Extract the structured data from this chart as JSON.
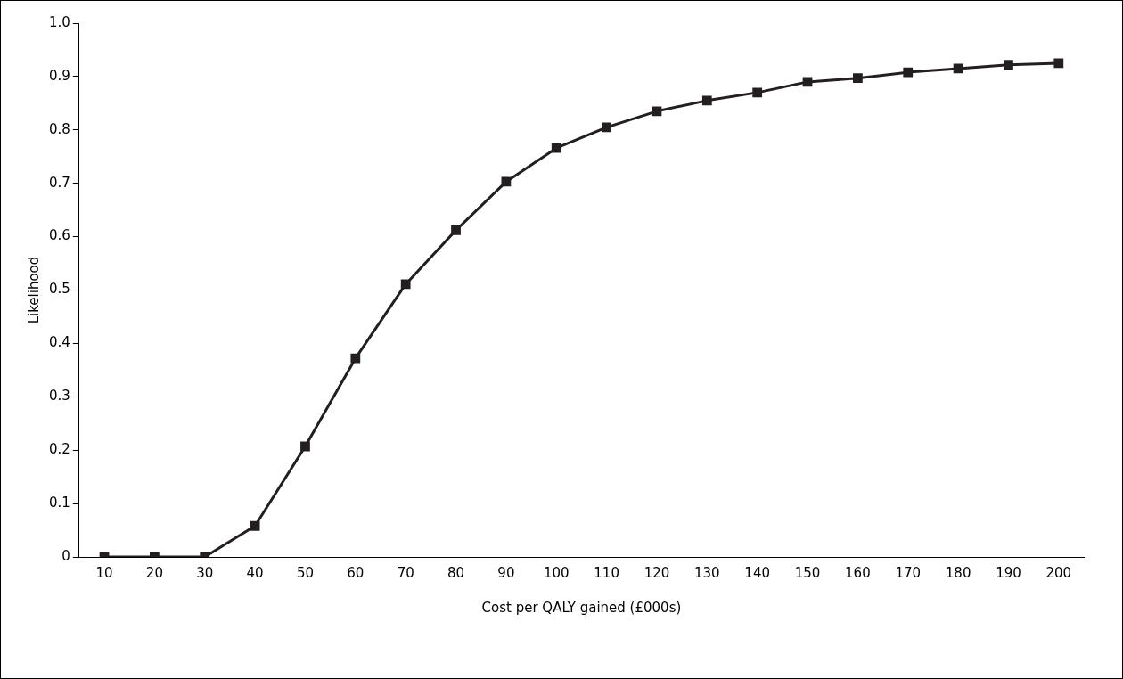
{
  "chart_data": {
    "type": "line",
    "xlabel": "Cost per QALY gained (£000s)",
    "ylabel": "Likelihood",
    "categories": [
      "10",
      "20",
      "30",
      "40",
      "50",
      "60",
      "70",
      "80",
      "90",
      "100",
      "110",
      "120",
      "130",
      "140",
      "150",
      "160",
      "170",
      "180",
      "190",
      "200"
    ],
    "series": [
      {
        "color": "#231f20",
        "values": [
          0,
          0,
          0,
          0.058,
          0.207,
          0.372,
          0.511,
          0.612,
          0.703,
          0.766,
          0.805,
          0.835,
          0.855,
          0.87,
          0.89,
          0.897,
          0.908,
          0.915,
          0.922,
          0.925
        ]
      }
    ],
    "ylim": [
      0,
      1
    ],
    "yticks": [
      0,
      {
        "value": 0.1,
        "label": "0.1"
      },
      {
        "value": 0.2,
        "label": "0.2"
      },
      {
        "value": 0.3,
        "label": "0.3"
      },
      {
        "value": 0.4,
        "label": "0.4"
      },
      {
        "value": 0.5,
        "label": "0.5"
      },
      {
        "value": 0.6,
        "label": "0.6"
      },
      {
        "value": 0.7,
        "label": "0.7"
      },
      {
        "value": 0.8,
        "label": "0.8"
      },
      {
        "value": 0.9,
        "label": "0.9"
      },
      {
        "value": 1,
        "label": "1.0"
      }
    ],
    "grid": false,
    "legend": false,
    "marker": "square",
    "line_style": "solid"
  }
}
